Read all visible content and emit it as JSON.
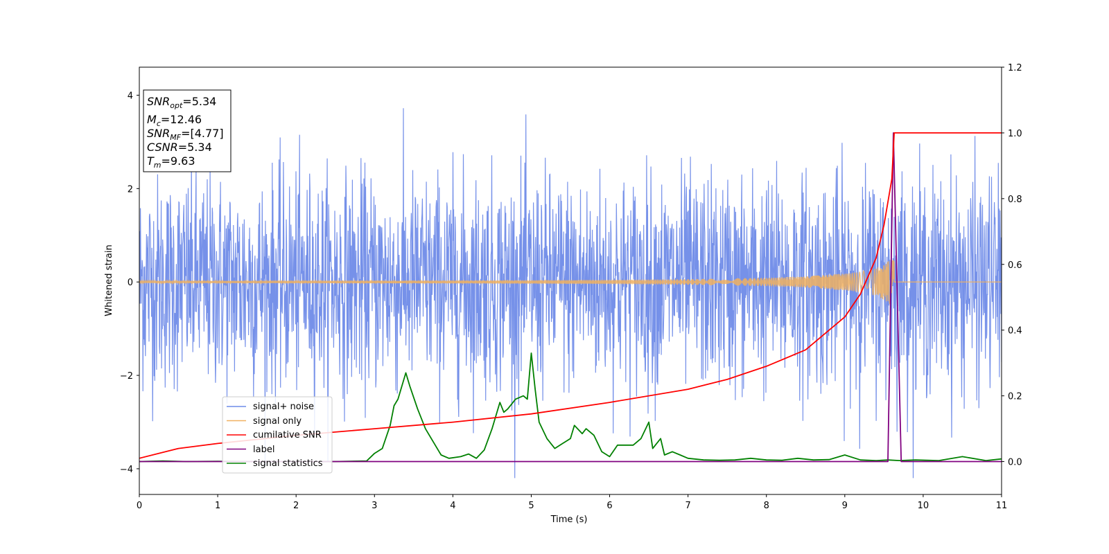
{
  "chart_data": {
    "type": "line",
    "xlabel": "Time (s)",
    "ylabel": "Whitened strain",
    "xlim": [
      0,
      11
    ],
    "ylim_left": [
      -4.55,
      4.6
    ],
    "ylim_right": [
      -0.1,
      1.2
    ],
    "x_ticks": [
      "0",
      "1",
      "2",
      "3",
      "4",
      "5",
      "6",
      "7",
      "8",
      "9",
      "10",
      "11"
    ],
    "y_ticks_left": [
      "−4",
      "−2",
      "0",
      "2",
      "4"
    ],
    "y_ticks_right": [
      "0.0",
      "0.2",
      "0.4",
      "0.6",
      "0.8",
      "1.0",
      "1.2"
    ],
    "grid": false,
    "legend_position": "lower-left",
    "annotation": {
      "snr_opt": "=5.34",
      "mc": "=12.46",
      "snr_mf": "=[4.77]",
      "csnr": "=5.34",
      "tm": "=9.63"
    },
    "series": [
      {
        "name": "signal+ noise",
        "axis": "left",
        "color": "#6f8be8",
        "description": "whitened noisy strain, amplitude about ±2.5 with spikes near ±4",
        "noise_amplitude": 2.5
      },
      {
        "name": "signal only",
        "axis": "left",
        "color": "#f0b060",
        "description": "chirp signal growing toward merger",
        "x": [
          0,
          2,
          4,
          6,
          7,
          8,
          8.5,
          9,
          9.2,
          9.4,
          9.5,
          9.6,
          9.63
        ],
        "envelope": [
          0.02,
          0.025,
          0.03,
          0.045,
          0.06,
          0.09,
          0.12,
          0.18,
          0.22,
          0.3,
          0.38,
          0.5,
          0.55
        ]
      },
      {
        "name": "cumilative SNR",
        "axis": "right",
        "color": "#ff0000",
        "x": [
          0,
          0.5,
          1,
          2,
          3,
          4,
          5,
          6,
          7,
          7.5,
          8,
          8.5,
          9,
          9.2,
          9.4,
          9.5,
          9.6,
          9.63,
          11
        ],
        "y": [
          0.01,
          0.04,
          0.055,
          0.08,
          0.1,
          0.12,
          0.145,
          0.18,
          0.22,
          0.25,
          0.29,
          0.34,
          0.44,
          0.51,
          0.62,
          0.72,
          0.86,
          1.0,
          1.0
        ]
      },
      {
        "name": "label",
        "axis": "right",
        "color": "#800080",
        "x": [
          0,
          9.55,
          9.62,
          9.72,
          9.78,
          11
        ],
        "y": [
          0,
          0,
          1.0,
          0,
          0,
          0
        ]
      },
      {
        "name": "signal statistics",
        "axis": "right",
        "color": "#008000",
        "x": [
          0,
          0.3,
          0.6,
          1,
          1.5,
          2,
          2.5,
          2.9,
          3.0,
          3.1,
          3.2,
          3.25,
          3.3,
          3.4,
          3.45,
          3.55,
          3.65,
          3.75,
          3.85,
          3.95,
          4.1,
          4.2,
          4.3,
          4.4,
          4.5,
          4.6,
          4.65,
          4.7,
          4.8,
          4.9,
          4.95,
          5.0,
          5.05,
          5.1,
          5.2,
          5.3,
          5.4,
          5.5,
          5.55,
          5.65,
          5.7,
          5.8,
          5.9,
          6.0,
          6.1,
          6.2,
          6.3,
          6.4,
          6.5,
          6.55,
          6.65,
          6.7,
          6.8,
          6.9,
          7.0,
          7.2,
          7.4,
          7.6,
          7.8,
          8.0,
          8.2,
          8.4,
          8.6,
          8.8,
          9.0,
          9.2,
          9.4,
          9.55,
          9.7,
          9.9,
          10.2,
          10.5,
          10.8,
          11
        ],
        "y": [
          0.0,
          0.002,
          0.0,
          0.001,
          0.0,
          0.0,
          0.0,
          0.002,
          0.025,
          0.04,
          0.11,
          0.17,
          0.19,
          0.27,
          0.23,
          0.16,
          0.1,
          0.06,
          0.02,
          0.01,
          0.015,
          0.023,
          0.01,
          0.035,
          0.1,
          0.18,
          0.15,
          0.16,
          0.19,
          0.2,
          0.19,
          0.33,
          0.22,
          0.12,
          0.07,
          0.04,
          0.055,
          0.07,
          0.11,
          0.085,
          0.1,
          0.08,
          0.03,
          0.015,
          0.05,
          0.05,
          0.05,
          0.07,
          0.12,
          0.04,
          0.07,
          0.02,
          0.03,
          0.02,
          0.01,
          0.005,
          0.004,
          0.005,
          0.01,
          0.005,
          0.004,
          0.01,
          0.005,
          0.006,
          0.02,
          0.005,
          0.003,
          0.005,
          0.003,
          0.005,
          0.003,
          0.015,
          0.003,
          0.008
        ]
      }
    ]
  }
}
